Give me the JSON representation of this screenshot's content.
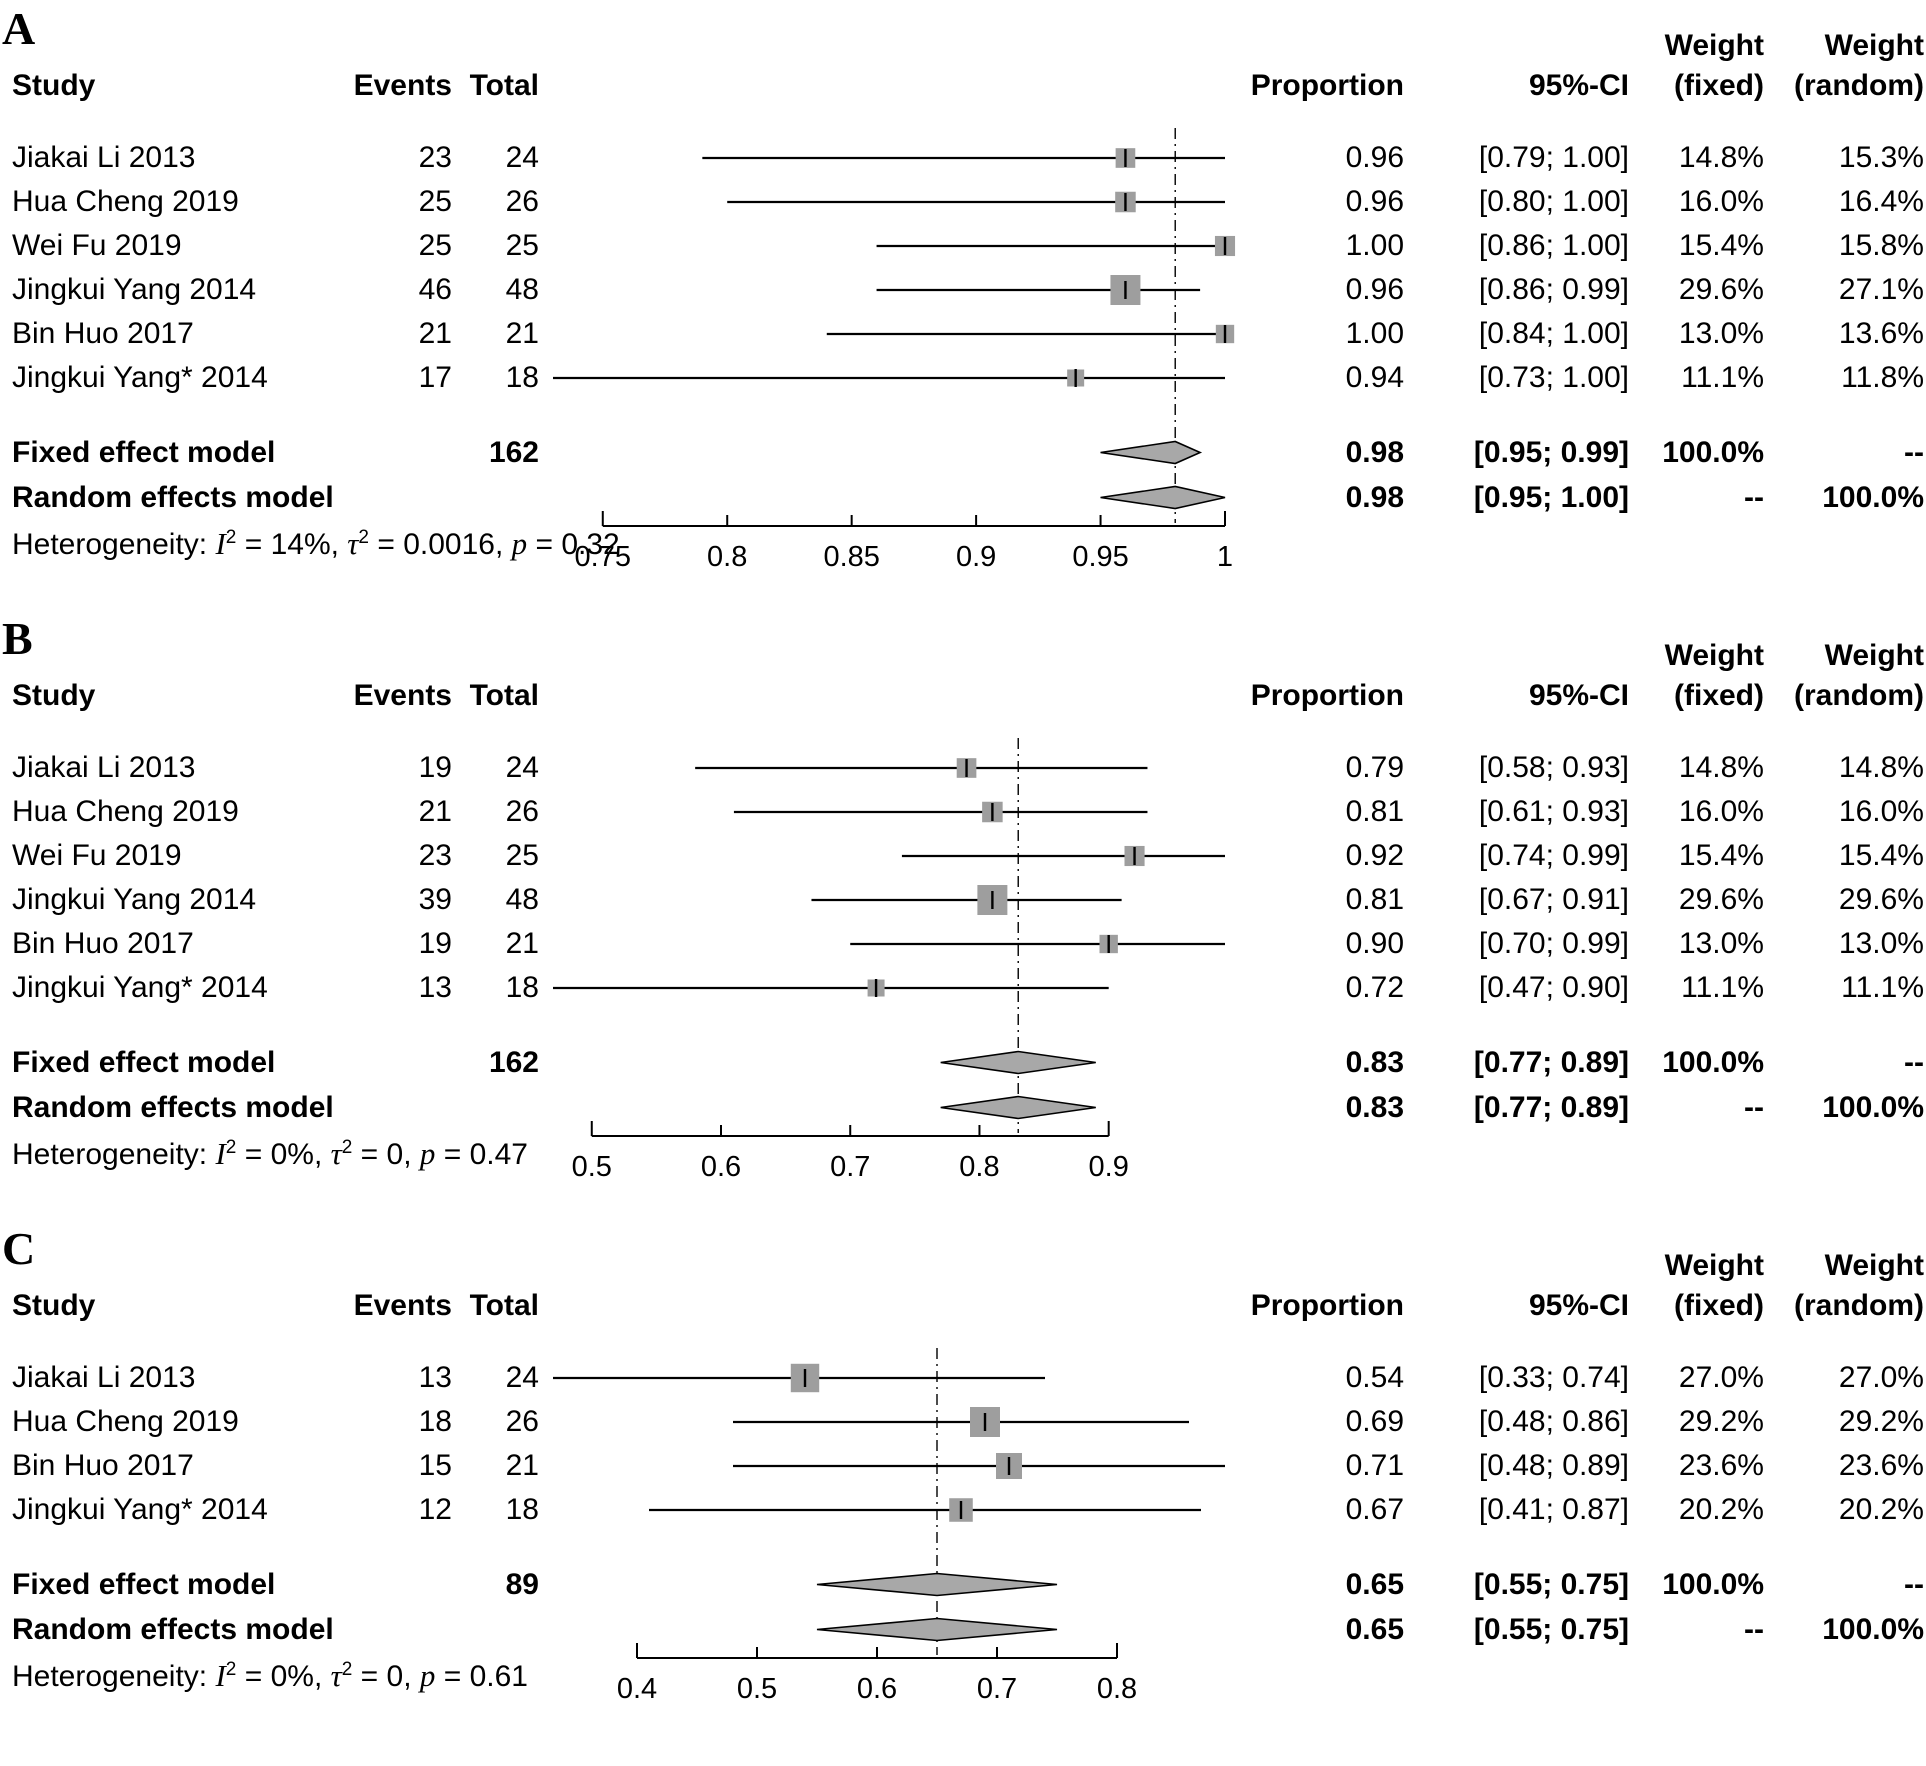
{
  "columns": {
    "study": "Study",
    "events": "Events",
    "total": "Total",
    "proportion": "Proportion",
    "ci": "95%-CI",
    "weight": "Weight",
    "fixed": "(fixed)",
    "random": "(random)"
  },
  "colors": {
    "marker_square": "#9e9e9e",
    "diamond_fill": "#a8a8a8",
    "line": "#000000",
    "text": "#000000"
  },
  "chart_data": {
    "type": "forest",
    "panels": [
      {
        "label": "A",
        "axis_ticks": [
          0.75,
          0.8,
          0.85,
          0.9,
          0.95,
          1
        ],
        "axis_tick_labels": [
          "0.75",
          "0.8",
          "0.85",
          "0.9",
          "0.95",
          "1"
        ],
        "studies": [
          {
            "study": "Jiakai Li 2013",
            "events": 23,
            "total": 24,
            "proportion": 0.96,
            "proportion_text": "0.96",
            "ci_low": 0.79,
            "ci_high": 1.0,
            "ci_text": "[0.79; 1.00]",
            "weight_fixed": "14.8%",
            "weight_random": "15.3%"
          },
          {
            "study": "Hua Cheng 2019",
            "events": 25,
            "total": 26,
            "proportion": 0.96,
            "proportion_text": "0.96",
            "ci_low": 0.8,
            "ci_high": 1.0,
            "ci_text": "[0.80; 1.00]",
            "weight_fixed": "16.0%",
            "weight_random": "16.4%"
          },
          {
            "study": "Wei Fu 2019",
            "events": 25,
            "total": 25,
            "proportion": 1.0,
            "proportion_text": "1.00",
            "ci_low": 0.86,
            "ci_high": 1.0,
            "ci_text": "[0.86; 1.00]",
            "weight_fixed": "15.4%",
            "weight_random": "15.8%"
          },
          {
            "study": "Jingkui Yang 2014",
            "events": 46,
            "total": 48,
            "proportion": 0.96,
            "proportion_text": "0.96",
            "ci_low": 0.86,
            "ci_high": 0.99,
            "ci_text": "[0.86; 0.99]",
            "weight_fixed": "29.6%",
            "weight_random": "27.1%"
          },
          {
            "study": "Bin Huo 2017",
            "events": 21,
            "total": 21,
            "proportion": 1.0,
            "proportion_text": "1.00",
            "ci_low": 0.84,
            "ci_high": 1.0,
            "ci_text": "[0.84; 1.00]",
            "weight_fixed": "13.0%",
            "weight_random": "13.6%"
          },
          {
            "study": "Jingkui Yang* 2014",
            "events": 17,
            "total": 18,
            "proportion": 0.94,
            "proportion_text": "0.94",
            "ci_low": 0.73,
            "ci_high": 1.0,
            "ci_text": "[0.73; 1.00]",
            "weight_fixed": "11.1%",
            "weight_random": "11.8%"
          }
        ],
        "models": [
          {
            "name": "Fixed effect model",
            "total_text": "162",
            "proportion": 0.98,
            "proportion_text": "0.98",
            "ci_low": 0.95,
            "ci_high": 0.99,
            "ci_text": "[0.95; 0.99]",
            "weight_fixed": "100.0%",
            "weight_random": "--"
          },
          {
            "name": "Random effects model",
            "total_text": "",
            "proportion": 0.98,
            "proportion_text": "0.98",
            "ci_low": 0.95,
            "ci_high": 1.0,
            "ci_text": "[0.95; 1.00]",
            "weight_fixed": "--",
            "weight_random": "100.0%"
          }
        ],
        "heterogeneity": {
          "prefix": "Heterogeneity:",
          "terms": [
            {
              "sym": "I",
              "sup": "2",
              "value": "14%"
            },
            {
              "sym": "τ",
              "sup": "2",
              "value": "0.0016"
            },
            {
              "sym": "p",
              "sup": "",
              "value": "0.32"
            }
          ]
        }
      },
      {
        "label": "B",
        "axis_ticks": [
          0.5,
          0.6,
          0.7,
          0.8,
          0.9
        ],
        "axis_tick_labels": [
          "0.5",
          "0.6",
          "0.7",
          "0.8",
          "0.9"
        ],
        "studies": [
          {
            "study": "Jiakai Li 2013",
            "events": 19,
            "total": 24,
            "proportion": 0.79,
            "proportion_text": "0.79",
            "ci_low": 0.58,
            "ci_high": 0.93,
            "ci_text": "[0.58; 0.93]",
            "weight_fixed": "14.8%",
            "weight_random": "14.8%"
          },
          {
            "study": "Hua Cheng 2019",
            "events": 21,
            "total": 26,
            "proportion": 0.81,
            "proportion_text": "0.81",
            "ci_low": 0.61,
            "ci_high": 0.93,
            "ci_text": "[0.61; 0.93]",
            "weight_fixed": "16.0%",
            "weight_random": "16.0%"
          },
          {
            "study": "Wei Fu 2019",
            "events": 23,
            "total": 25,
            "proportion": 0.92,
            "proportion_text": "0.92",
            "ci_low": 0.74,
            "ci_high": 0.99,
            "ci_text": "[0.74; 0.99]",
            "weight_fixed": "15.4%",
            "weight_random": "15.4%"
          },
          {
            "study": "Jingkui Yang 2014",
            "events": 39,
            "total": 48,
            "proportion": 0.81,
            "proportion_text": "0.81",
            "ci_low": 0.67,
            "ci_high": 0.91,
            "ci_text": "[0.67; 0.91]",
            "weight_fixed": "29.6%",
            "weight_random": "29.6%"
          },
          {
            "study": "Bin Huo 2017",
            "events": 19,
            "total": 21,
            "proportion": 0.9,
            "proportion_text": "0.90",
            "ci_low": 0.7,
            "ci_high": 0.99,
            "ci_text": "[0.70; 0.99]",
            "weight_fixed": "13.0%",
            "weight_random": "13.0%"
          },
          {
            "study": "Jingkui Yang* 2014",
            "events": 13,
            "total": 18,
            "proportion": 0.72,
            "proportion_text": "0.72",
            "ci_low": 0.47,
            "ci_high": 0.9,
            "ci_text": "[0.47; 0.90]",
            "weight_fixed": "11.1%",
            "weight_random": "11.1%"
          }
        ],
        "models": [
          {
            "name": "Fixed effect model",
            "total_text": "162",
            "proportion": 0.83,
            "proportion_text": "0.83",
            "ci_low": 0.77,
            "ci_high": 0.89,
            "ci_text": "[0.77; 0.89]",
            "weight_fixed": "100.0%",
            "weight_random": "--"
          },
          {
            "name": "Random effects model",
            "total_text": "",
            "proportion": 0.83,
            "proportion_text": "0.83",
            "ci_low": 0.77,
            "ci_high": 0.89,
            "ci_text": "[0.77; 0.89]",
            "weight_fixed": "--",
            "weight_random": "100.0%"
          }
        ],
        "heterogeneity": {
          "prefix": "Heterogeneity:",
          "terms": [
            {
              "sym": "I",
              "sup": "2",
              "value": "0%"
            },
            {
              "sym": "τ",
              "sup": "2",
              "value": "0"
            },
            {
              "sym": "p",
              "sup": "",
              "value": "0.47"
            }
          ]
        }
      },
      {
        "label": "C",
        "axis_ticks": [
          0.4,
          0.5,
          0.6,
          0.7,
          0.8
        ],
        "axis_tick_labels": [
          "0.4",
          "0.5",
          "0.6",
          "0.7",
          "0.8"
        ],
        "studies": [
          {
            "study": "Jiakai Li 2013",
            "events": 13,
            "total": 24,
            "proportion": 0.54,
            "proportion_text": "0.54",
            "ci_low": 0.33,
            "ci_high": 0.74,
            "ci_text": "[0.33; 0.74]",
            "weight_fixed": "27.0%",
            "weight_random": "27.0%"
          },
          {
            "study": "Hua Cheng 2019",
            "events": 18,
            "total": 26,
            "proportion": 0.69,
            "proportion_text": "0.69",
            "ci_low": 0.48,
            "ci_high": 0.86,
            "ci_text": "[0.48; 0.86]",
            "weight_fixed": "29.2%",
            "weight_random": "29.2%"
          },
          {
            "study": "Bin Huo 2017",
            "events": 15,
            "total": 21,
            "proportion": 0.71,
            "proportion_text": "0.71",
            "ci_low": 0.48,
            "ci_high": 0.89,
            "ci_text": "[0.48; 0.89]",
            "weight_fixed": "23.6%",
            "weight_random": "23.6%"
          },
          {
            "study": "Jingkui Yang* 2014",
            "events": 12,
            "total": 18,
            "proportion": 0.67,
            "proportion_text": "0.67",
            "ci_low": 0.41,
            "ci_high": 0.87,
            "ci_text": "[0.41; 0.87]",
            "weight_fixed": "20.2%",
            "weight_random": "20.2%"
          }
        ],
        "models": [
          {
            "name": "Fixed effect model",
            "total_text": "89",
            "proportion": 0.65,
            "proportion_text": "0.65",
            "ci_low": 0.55,
            "ci_high": 0.75,
            "ci_text": "[0.55; 0.75]",
            "weight_fixed": "100.0%",
            "weight_random": "--"
          },
          {
            "name": "Random effects model",
            "total_text": "",
            "proportion": 0.65,
            "proportion_text": "0.65",
            "ci_low": 0.55,
            "ci_high": 0.75,
            "ci_text": "[0.55; 0.75]",
            "weight_fixed": "--",
            "weight_random": "100.0%"
          }
        ],
        "heterogeneity": {
          "prefix": "Heterogeneity:",
          "terms": [
            {
              "sym": "I",
              "sup": "2",
              "value": "0%"
            },
            {
              "sym": "τ",
              "sup": "2",
              "value": "0"
            },
            {
              "sym": "p",
              "sup": "",
              "value": "0.61"
            }
          ]
        }
      }
    ]
  }
}
